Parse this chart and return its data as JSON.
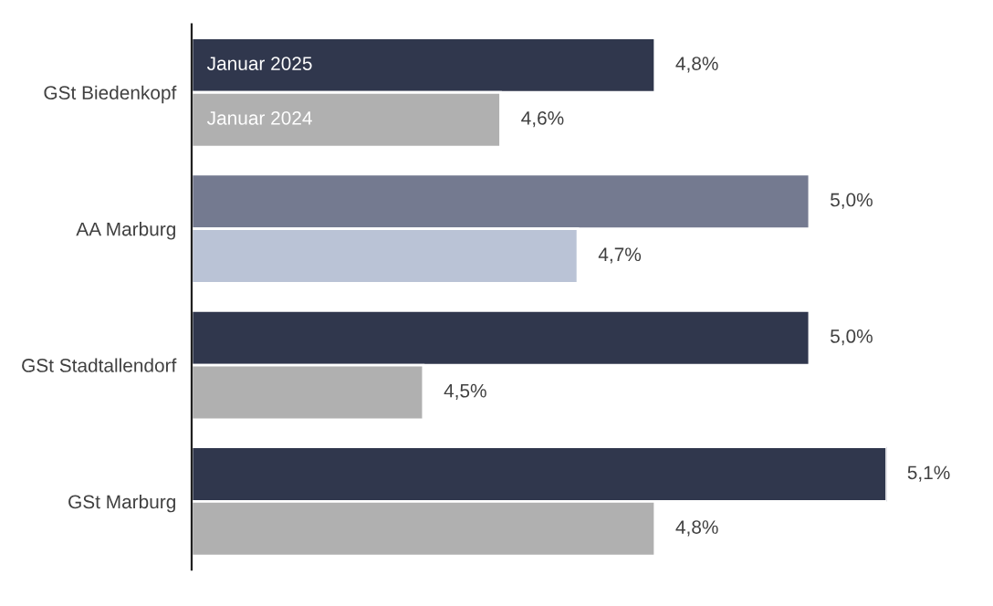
{
  "chart_data": {
    "type": "bar",
    "orientation": "horizontal",
    "categories": [
      "GSt Biedenkopf",
      "AA Marburg",
      "GSt Stadtallendorf",
      "GSt Marburg"
    ],
    "series": [
      {
        "name": "Januar 2025",
        "colors": [
          "#30374d",
          "#747a90",
          "#30374d",
          "#30374d"
        ],
        "values": [
          4.8,
          5.0,
          5.0,
          5.1
        ],
        "value_labels": [
          "4,8%",
          "5,0%",
          "5,0%",
          "5,1%"
        ]
      },
      {
        "name": "Januar 2024",
        "colors": [
          "#b0b0b0",
          "#bac3d6",
          "#b0b0b0",
          "#b0b0b0"
        ],
        "values": [
          4.6,
          4.7,
          4.5,
          4.8
        ],
        "value_labels": [
          "4,6%",
          "4,7%",
          "4,5%",
          "4,8%"
        ]
      }
    ],
    "xlim": [
      4.2,
      5.1
    ],
    "tick_labels": "y",
    "legend": false
  }
}
